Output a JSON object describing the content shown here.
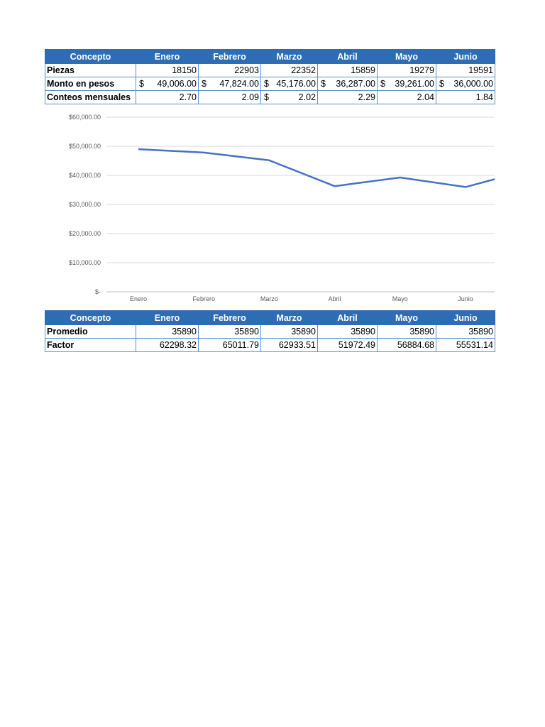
{
  "table1": {
    "headers": [
      "Concepto",
      "Enero",
      "Febrero",
      "Marzo",
      "Abril",
      "Mayo",
      "Junio"
    ],
    "rows": [
      {
        "label": "Piezas",
        "cells": [
          {
            "v": "18150"
          },
          {
            "v": "22903"
          },
          {
            "v": "22352"
          },
          {
            "v": "15859"
          },
          {
            "v": "19279"
          },
          {
            "v": "19591"
          }
        ]
      },
      {
        "label": "Monto en pesos",
        "cells": [
          {
            "s": "$",
            "v": "49,006.00"
          },
          {
            "s": "$",
            "v": "47,824.00"
          },
          {
            "s": "$",
            "v": "45,176.00"
          },
          {
            "s": "$",
            "v": "36,287.00"
          },
          {
            "s": "$",
            "v": "39,261.00"
          },
          {
            "s": "$",
            "v": "36,000.00"
          }
        ]
      },
      {
        "label": "Conteos mensuales",
        "cells": [
          {
            "v": "2.70"
          },
          {
            "v": "2.09"
          },
          {
            "s": "$",
            "v": "2.02"
          },
          {
            "v": "2.29"
          },
          {
            "v": "2.04"
          },
          {
            "v": "1.84"
          }
        ]
      }
    ]
  },
  "table2": {
    "headers": [
      "Concepto",
      "Enero",
      "Febrero",
      "Marzo",
      "Abril",
      "Mayo",
      "Junio"
    ],
    "rows": [
      {
        "label": "Promedio",
        "cells": [
          {
            "v": "35890"
          },
          {
            "v": "35890"
          },
          {
            "v": "35890"
          },
          {
            "v": "35890"
          },
          {
            "v": "35890"
          },
          {
            "v": "35890"
          }
        ]
      },
      {
        "label": "Factor",
        "cells": [
          {
            "v": "62298.32"
          },
          {
            "v": "65011.79"
          },
          {
            "v": "62933.51"
          },
          {
            "v": "51972.49"
          },
          {
            "v": "56884.68"
          },
          {
            "v": "55531.14"
          }
        ]
      }
    ]
  },
  "chart_data": {
    "type": "line",
    "categories": [
      "Enero",
      "Febrero",
      "Marzo",
      "Abril",
      "Mayo",
      "Junio"
    ],
    "series": [
      {
        "name": "Monto en pesos",
        "values": [
          49006,
          47824,
          45176,
          36287,
          39261,
          36000
        ],
        "color": "#4472c4"
      }
    ],
    "clipped_next_value": 42000,
    "ylim": [
      0,
      60000
    ],
    "yticks": [
      0,
      10000,
      20000,
      30000,
      40000,
      50000,
      60000
    ],
    "ytick_labels": [
      "$-",
      "$10,000.00",
      "$20,000.00",
      "$30,000.00",
      "$40,000.00",
      "$50,000.00",
      "$60,000.00"
    ],
    "grid": true,
    "title": "",
    "xlabel": "",
    "ylabel": ""
  }
}
